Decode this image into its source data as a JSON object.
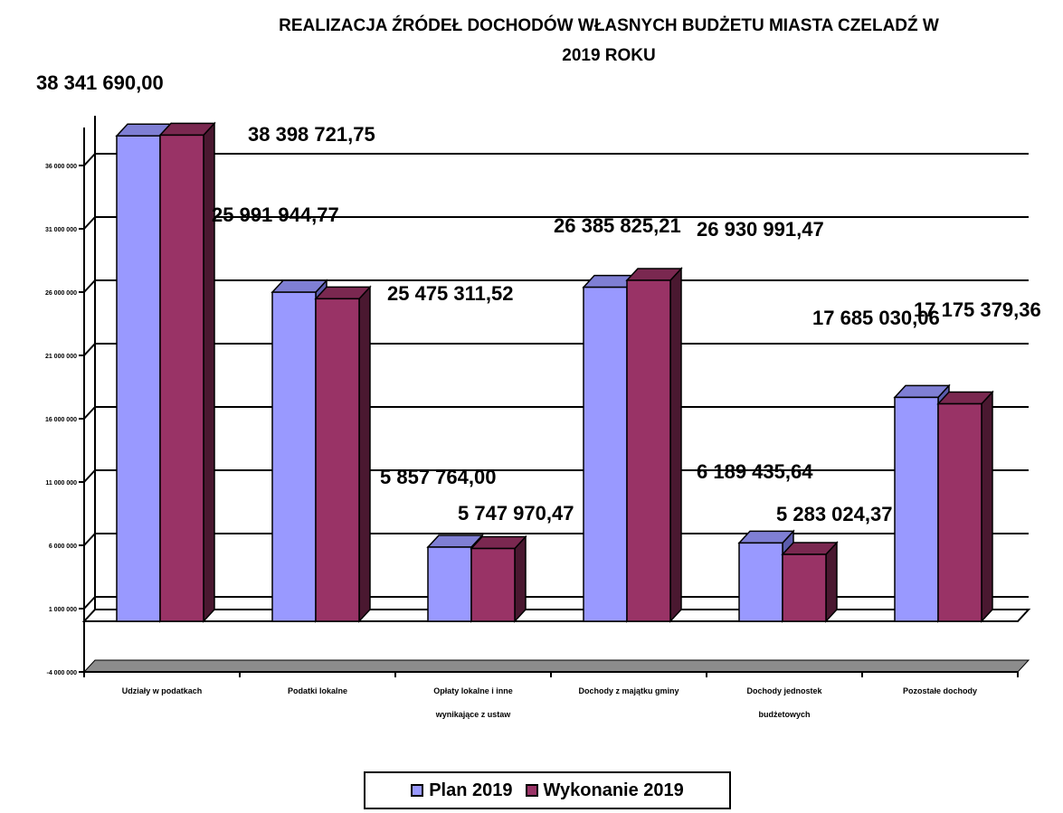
{
  "chart_data": {
    "type": "bar",
    "title": [
      "REALIZACJA ŹRÓDEŁ DOCHODÓW WŁASNYCH BUDŻETU MIASTA CZELADŹ W",
      "2019 ROKU"
    ],
    "categories": [
      [
        "Udziały w podatkach"
      ],
      [
        "Podatki lokalne"
      ],
      [
        "Opłaty lokalne i inne",
        "wynikające z ustaw"
      ],
      [
        "Dochody z majątku gminy"
      ],
      [
        "Dochody jednostek",
        "budżetowych"
      ],
      [
        "Pozostałe dochody"
      ]
    ],
    "series": [
      {
        "name": "Plan 2019",
        "values": [
          38341690.0,
          25991944.77,
          5857764.0,
          26385825.21,
          6189435.64,
          17685030.06
        ],
        "labels": [
          "38 341 690,00",
          "25 991 944,77",
          "5 857 764,00",
          "26 385 825,21",
          "6 189 435,64",
          "17 685 030,06"
        ]
      },
      {
        "name": "Wykonanie 2019",
        "values": [
          38398721.75,
          25475311.52,
          5747970.47,
          26930991.47,
          5283024.37,
          17175379.36
        ],
        "labels": [
          "38 398 721,75",
          "25 475 311,52",
          "5 747 970,47",
          "26 930 991,47",
          "5 283 024,37",
          "17 175 379,36"
        ]
      }
    ],
    "ylim": [
      -4000000,
      39000000
    ],
    "yticks": [
      -4000000,
      1000000,
      6000000,
      11000000,
      16000000,
      21000000,
      26000000,
      31000000,
      36000000
    ],
    "ytick_labels": [
      "-4 000 000",
      "1 000 000",
      "6 000 000",
      "11 000 000",
      "16 000 000",
      "21 000 000",
      "26 000 000",
      "31 000 000",
      "36 000 000"
    ],
    "grid": true,
    "legend_position": "bottom-center",
    "colors": {
      "plan": "#9999ff",
      "plan_top": "#7f7fd4",
      "wyk": "#993366",
      "wyk_side": "#4a1830",
      "wyk_top": "#7a2850",
      "floor": "#8c8c8c"
    }
  }
}
